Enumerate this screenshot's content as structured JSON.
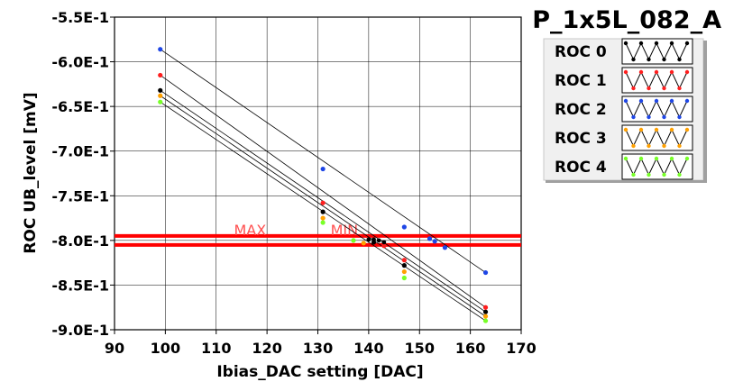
{
  "chart_data": {
    "type": "scatter",
    "title": "P_1x5L_082_A",
    "xlabel": "Ibias_DAC setting [DAC]",
    "ylabel": "ROC UB_level [mV]",
    "xlim": [
      90,
      170
    ],
    "ylim": [
      -0.9,
      -0.55
    ],
    "x_ticks": [
      90,
      100,
      110,
      120,
      130,
      140,
      150,
      160,
      170
    ],
    "x_tick_labels": [
      "90",
      "100",
      "110",
      "120",
      "130",
      "140",
      "150",
      "160",
      "170"
    ],
    "y_ticks": [
      -0.55,
      -0.6,
      -0.65,
      -0.7,
      -0.75,
      -0.8,
      -0.85,
      -0.9
    ],
    "y_tick_labels": [
      "-5.5E-1",
      "-6.0E-1",
      "-6.5E-1",
      "-7.0E-1",
      "-7.5E-1",
      "-8.0E-1",
      "-8.5E-1",
      "-9.0E-1"
    ],
    "grid": true,
    "legend_position": "right",
    "limits": [
      {
        "label": "MAX",
        "y": -0.795,
        "color": "#ff0000"
      },
      {
        "label": "MIN",
        "y": -0.805,
        "color": "#ff0000"
      }
    ],
    "series": [
      {
        "name": "ROC 0",
        "color": "#000000",
        "points": [
          [
            99,
            -0.632
          ],
          [
            131,
            -0.768
          ],
          [
            141,
            -0.802
          ],
          [
            147,
            -0.828
          ],
          [
            163,
            -0.88
          ]
        ],
        "crossing_x": [
          141,
          141
        ]
      },
      {
        "name": "ROC 1",
        "color": "#ff1e1e",
        "points": [
          [
            99,
            -0.615
          ],
          [
            131,
            -0.758
          ],
          [
            143,
            -0.806
          ],
          [
            147,
            -0.822
          ],
          [
            163,
            -0.875
          ]
        ],
        "crossing_x": [
          143,
          143
        ]
      },
      {
        "name": "ROC 2",
        "color": "#1e46e6",
        "points": [
          [
            99,
            -0.586
          ],
          [
            131,
            -0.72
          ],
          [
            147,
            -0.785
          ],
          [
            152,
            -0.798
          ],
          [
            153,
            -0.801
          ],
          [
            155,
            -0.808
          ],
          [
            163,
            -0.836
          ]
        ],
        "crossing_x": [
          152,
          153
        ]
      },
      {
        "name": "ROC 3",
        "color": "#ffa000",
        "points": [
          [
            99,
            -0.638
          ],
          [
            131,
            -0.775
          ],
          [
            139,
            -0.803
          ],
          [
            147,
            -0.835
          ],
          [
            163,
            -0.885
          ]
        ],
        "crossing_x": [
          139,
          139
        ]
      },
      {
        "name": "ROC 4",
        "color": "#78ff28",
        "points": [
          [
            99,
            -0.645
          ],
          [
            131,
            -0.78
          ],
          [
            137,
            -0.8
          ],
          [
            147,
            -0.842
          ],
          [
            163,
            -0.89
          ]
        ],
        "crossing_x": [
          137,
          137
        ]
      }
    ],
    "extra_points": [
      {
        "x": 140,
        "y": -0.799,
        "color": "#000000"
      },
      {
        "x": 141,
        "y": -0.799,
        "color": "#000000"
      },
      {
        "x": 142,
        "y": -0.8,
        "color": "#000000"
      },
      {
        "x": 143,
        "y": -0.802,
        "color": "#000000"
      }
    ]
  }
}
